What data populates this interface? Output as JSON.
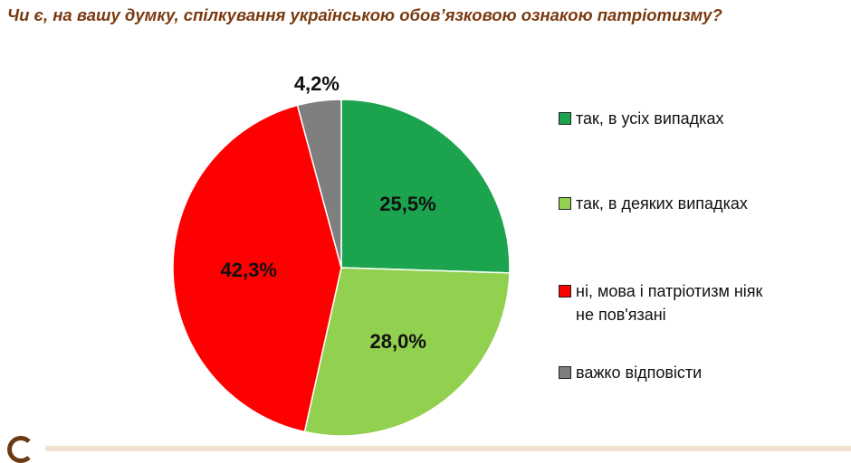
{
  "chart_data": {
    "type": "pie",
    "title": "Чи є, на вашу думку, спілкування українською обов’язковою ознакою патріотизму?",
    "slices": [
      {
        "label": "так, в усіх випадках",
        "value": 25.5,
        "value_label": "25,5%",
        "color": "#1ba34e"
      },
      {
        "label": "так, в деяких випадках",
        "value": 28.0,
        "value_label": "28,0%",
        "color": "#92d050"
      },
      {
        "label": "ні, мова і патріотизм ніяк\nне пов'язані",
        "value": 42.3,
        "value_label": "42,3%",
        "color": "#ff0000"
      },
      {
        "label": "важко відповісти",
        "value": 4.2,
        "value_label": "4,2%",
        "color": "#7f7f7f"
      }
    ],
    "start": "12 o'clock",
    "direction": "clockwise",
    "legend_position": "right"
  }
}
